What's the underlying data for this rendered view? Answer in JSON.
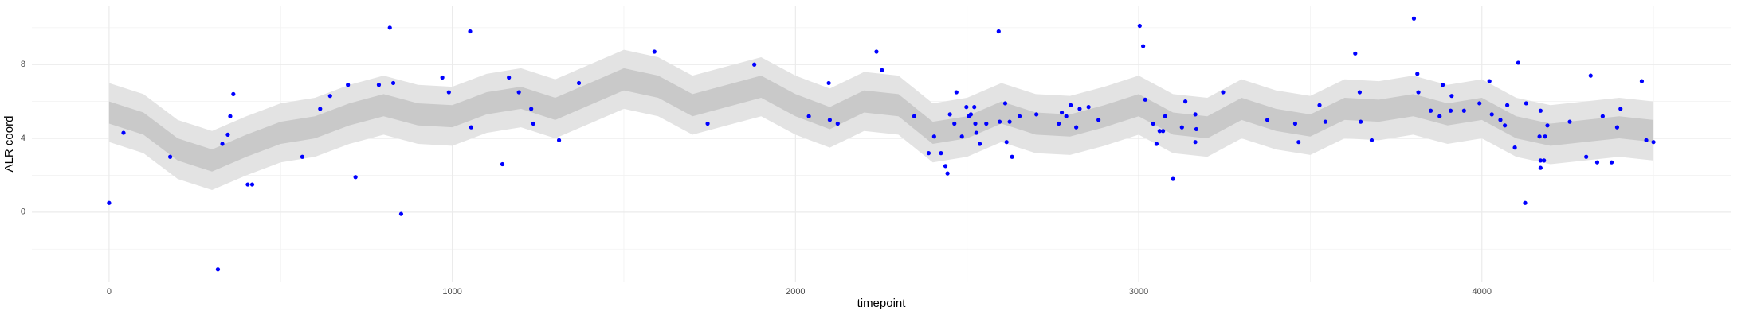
{
  "chart_data": {
    "type": "ribbon-scatter",
    "xlabel": "timepoint",
    "ylabel": "ALR coord",
    "xlim": [
      -225,
      4725
    ],
    "ylim": [
      -3.8,
      11.2
    ],
    "xticks": [
      0,
      1000,
      2000,
      3000,
      4000
    ],
    "yticks": [
      0,
      4,
      8
    ],
    "xminor": [
      500,
      1500,
      2500,
      3500,
      4500
    ],
    "yminor": [
      -2,
      2,
      6,
      10
    ],
    "grid": true,
    "x": [
      0,
      100,
      200,
      300,
      400,
      500,
      600,
      700,
      800,
      900,
      1000,
      1100,
      1200,
      1300,
      1400,
      1500,
      1600,
      1700,
      1800,
      1900,
      2000,
      2100,
      2200,
      2300,
      2400,
      2500,
      2600,
      2700,
      2800,
      2900,
      3000,
      3100,
      3200,
      3300,
      3400,
      3500,
      3600,
      3700,
      3800,
      3900,
      4000,
      4100,
      4200,
      4300,
      4400,
      4500
    ],
    "ribbons": [
      {
        "color": "#e3e3e3",
        "lower": [
          3.8,
          3.2,
          1.8,
          1.2,
          2.0,
          2.7,
          3.0,
          3.7,
          4.2,
          3.7,
          3.6,
          4.3,
          4.6,
          4.0,
          4.8,
          5.6,
          5.2,
          4.2,
          4.7,
          5.2,
          4.2,
          3.5,
          4.4,
          4.2,
          2.7,
          3.0,
          3.8,
          3.2,
          3.1,
          3.6,
          4.2,
          3.2,
          3.0,
          4.0,
          3.4,
          3.1,
          4.0,
          3.9,
          4.2,
          3.7,
          4.0,
          3.0,
          2.6,
          2.8,
          3.0,
          2.8
        ],
        "upper": [
          7.0,
          6.4,
          5.0,
          4.4,
          5.2,
          5.9,
          6.2,
          6.9,
          7.4,
          6.9,
          6.8,
          7.5,
          7.8,
          7.2,
          8.0,
          8.8,
          8.4,
          7.4,
          7.9,
          8.4,
          7.4,
          6.7,
          7.6,
          7.4,
          5.9,
          6.2,
          7.0,
          6.4,
          6.3,
          6.8,
          7.4,
          6.4,
          6.2,
          7.2,
          6.6,
          6.3,
          7.2,
          7.1,
          7.4,
          6.9,
          7.2,
          6.2,
          5.8,
          6.0,
          6.2,
          6.0
        ]
      },
      {
        "color": "#c9c9c9",
        "lower": [
          4.8,
          4.2,
          2.8,
          2.2,
          3.0,
          3.7,
          4.0,
          4.7,
          5.2,
          4.7,
          4.6,
          5.3,
          5.6,
          5.0,
          5.8,
          6.6,
          6.2,
          5.2,
          5.7,
          6.2,
          5.2,
          4.5,
          5.4,
          5.2,
          3.7,
          4.0,
          4.8,
          4.2,
          4.1,
          4.6,
          5.2,
          4.2,
          4.0,
          5.0,
          4.4,
          4.1,
          5.0,
          4.9,
          5.2,
          4.7,
          5.0,
          4.0,
          3.6,
          3.8,
          4.0,
          3.8
        ],
        "upper": [
          6.0,
          5.4,
          4.0,
          3.4,
          4.2,
          4.9,
          5.2,
          5.9,
          6.4,
          5.9,
          5.8,
          6.5,
          6.8,
          6.2,
          7.0,
          7.8,
          7.4,
          6.4,
          6.9,
          7.4,
          6.4,
          5.7,
          6.6,
          6.4,
          4.9,
          5.2,
          6.0,
          5.4,
          5.3,
          5.8,
          6.4,
          5.4,
          5.2,
          6.2,
          5.6,
          5.3,
          6.2,
          6.1,
          6.4,
          5.9,
          6.2,
          5.2,
          4.8,
          5.0,
          5.2,
          5.0
        ]
      }
    ],
    "points": {
      "color": "#0000ff",
      "x": [
        0,
        42,
        178,
        317,
        330,
        346,
        353,
        362,
        404,
        417,
        563,
        615,
        644,
        696,
        718,
        786,
        818,
        828,
        851,
        971,
        990,
        1052,
        1055,
        1146,
        1165,
        1194,
        1230,
        1236,
        1311,
        1369,
        1589,
        1744,
        1880,
        2039,
        2097,
        2100,
        2123,
        2236,
        2252,
        2346,
        2388,
        2404,
        2424,
        2437,
        2443,
        2450,
        2463,
        2469,
        2485,
        2498,
        2505,
        2511,
        2521,
        2524,
        2527,
        2537,
        2556,
        2592,
        2595,
        2611,
        2615,
        2624,
        2631,
        2653,
        2702,
        2767,
        2776,
        2789,
        2802,
        2818,
        2828,
        2854,
        2883,
        3003,
        3013,
        3019,
        3042,
        3052,
        3061,
        3071,
        3077,
        3100,
        3126,
        3136,
        3165,
        3165,
        3168,
        3246,
        3375,
        3456,
        3466,
        3527,
        3544,
        3631,
        3644,
        3647,
        3679,
        3802,
        3812,
        3815,
        3851,
        3877,
        3886,
        3909,
        3912,
        3948,
        3993,
        4022,
        4029,
        4054,
        4067,
        4074,
        4096,
        4106,
        4126,
        4129,
        4168,
        4171,
        4171,
        4171,
        4181,
        4184,
        4191,
        4256,
        4304,
        4317,
        4336,
        4352,
        4378,
        4394,
        4404,
        4466,
        4479,
        4500
      ],
      "y": [
        0.5,
        4.3,
        3.0,
        -3.1,
        3.7,
        4.2,
        5.2,
        6.4,
        1.5,
        1.5,
        3.0,
        5.6,
        6.3,
        6.9,
        1.9,
        6.9,
        10.0,
        7.0,
        -0.1,
        7.3,
        6.5,
        9.8,
        4.6,
        2.6,
        7.3,
        6.5,
        5.6,
        4.8,
        3.9,
        7.0,
        8.7,
        4.8,
        8.0,
        5.2,
        7.0,
        5.0,
        4.8,
        8.7,
        7.7,
        5.2,
        3.2,
        4.1,
        3.2,
        2.5,
        2.1,
        5.3,
        4.8,
        6.5,
        4.1,
        5.7,
        5.2,
        5.3,
        5.7,
        4.8,
        4.3,
        3.7,
        4.8,
        9.8,
        4.9,
        5.9,
        3.8,
        4.9,
        3.0,
        5.2,
        5.3,
        4.8,
        5.4,
        5.2,
        5.8,
        4.6,
        5.6,
        5.7,
        5.0,
        10.1,
        9.0,
        6.1,
        4.8,
        3.7,
        4.4,
        4.4,
        5.2,
        1.8,
        4.6,
        6.0,
        5.3,
        3.8,
        4.5,
        6.5,
        5.0,
        4.8,
        3.8,
        5.8,
        4.9,
        8.6,
        6.5,
        4.9,
        3.9,
        10.5,
        7.5,
        6.5,
        5.5,
        5.2,
        6.9,
        5.5,
        6.3,
        5.5,
        5.9,
        7.1,
        5.3,
        5.0,
        4.7,
        5.8,
        3.5,
        8.1,
        0.5,
        5.9,
        4.1,
        2.8,
        2.4,
        5.5,
        2.8,
        4.1,
        4.7,
        4.9,
        3.0,
        7.4,
        2.7,
        5.2,
        2.7,
        4.6,
        5.6,
        7.1,
        3.9,
        3.8
      ]
    }
  }
}
